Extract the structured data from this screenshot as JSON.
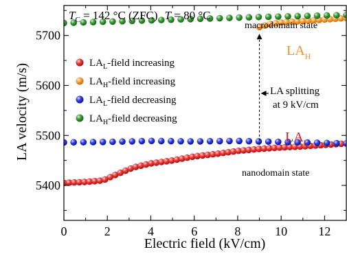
{
  "chart_data": {
    "type": "scatter",
    "xlabel": "Electric field (kV/cm)",
    "ylabel": "LA velocity (m/s)",
    "xlim": [
      0,
      13
    ],
    "ylim": [
      5330,
      5760
    ],
    "x_ticks": [
      0,
      2,
      4,
      6,
      8,
      10,
      12
    ],
    "y_ticks": [
      5400,
      5500,
      5600,
      5700
    ],
    "grid": false,
    "legend_position": "middle-left",
    "header": {
      "tc_symbol": "T",
      "tc_sub": "C",
      "tc_text": " = 142 °C (ZFC)",
      "t_symbol": "T",
      "t_text": " = 80 °C"
    },
    "annotations": {
      "macrodomain": "macrodomain state",
      "nanodomain": "nanodomain state",
      "splitting_line1": "LA splitting",
      "splitting_line2": "at 9 kV/cm",
      "split_field": 9,
      "lah_main": "LA",
      "lah_sub": "H",
      "lal_main": "LA",
      "lal_sub": "L"
    },
    "series": [
      {
        "name": "LAL-field increasing",
        "label_main": "LA",
        "label_sub": "L",
        "label_rest": "-field increasing",
        "color": "#e8191f",
        "x_range": [
          0,
          13
        ],
        "n": 56,
        "knots": [
          [
            0,
            5405
          ],
          [
            1,
            5407
          ],
          [
            1.8,
            5410
          ],
          [
            2.2,
            5418
          ],
          [
            3.2,
            5436
          ],
          [
            4,
            5444
          ],
          [
            5,
            5450
          ],
          [
            6,
            5458
          ],
          [
            7,
            5463
          ],
          [
            8,
            5469
          ],
          [
            9,
            5473
          ],
          [
            10,
            5476
          ],
          [
            11,
            5478
          ],
          [
            12,
            5481
          ],
          [
            13,
            5484
          ]
        ]
      },
      {
        "name": "LAH-field increasing",
        "label_main": "LA",
        "label_sub": "H",
        "label_rest": "-field increasing",
        "color": "#f6901e",
        "x_range": [
          9,
          13
        ],
        "n": 17,
        "knots": [
          [
            9,
            5717
          ],
          [
            9.5,
            5723
          ],
          [
            10,
            5726
          ],
          [
            11,
            5729
          ],
          [
            12,
            5732
          ],
          [
            13,
            5735
          ]
        ]
      },
      {
        "name": "LAL-field decreasing",
        "label_main": "LA",
        "label_sub": "L",
        "label_rest": "-field decreasing",
        "color": "#1a23d6",
        "x_range": [
          0,
          13
        ],
        "n": 30,
        "knots": [
          [
            0,
            5486
          ],
          [
            2,
            5487
          ],
          [
            4,
            5489
          ],
          [
            6,
            5488
          ],
          [
            8,
            5489
          ],
          [
            10,
            5487
          ],
          [
            11,
            5486
          ],
          [
            12,
            5485
          ],
          [
            13,
            5484
          ]
        ]
      },
      {
        "name": "LAH-field decreasing",
        "label_main": "LA",
        "label_sub": "H",
        "label_rest": "-field decreasing",
        "color": "#2b8a2b",
        "x_range": [
          0,
          13
        ],
        "n": 30,
        "knots": [
          [
            0,
            5725
          ],
          [
            3,
            5729
          ],
          [
            6,
            5733
          ],
          [
            9,
            5737
          ],
          [
            11,
            5739
          ],
          [
            13,
            5741
          ]
        ]
      }
    ]
  }
}
